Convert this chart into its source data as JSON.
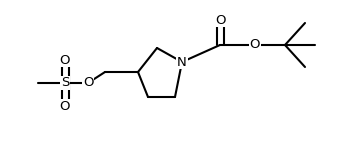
{
  "bg_color": "#ffffff",
  "line_color": "#000000",
  "lw": 1.5,
  "font_size": 9.5,
  "figsize": [
    3.52,
    1.55
  ],
  "dpi": 100,
  "xlim": [
    0,
    352
  ],
  "ylim": [
    0,
    155
  ]
}
